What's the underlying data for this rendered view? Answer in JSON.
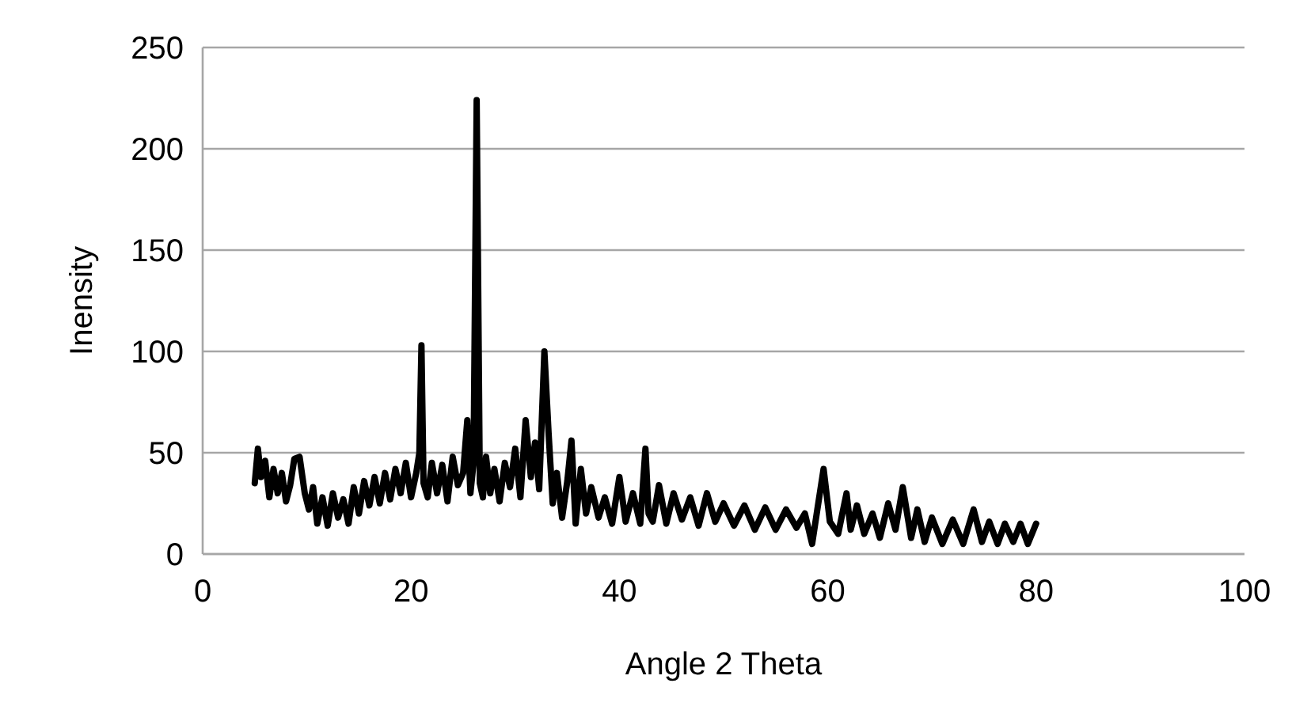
{
  "chart_data": {
    "type": "line",
    "xlabel": "Angle 2 Theta",
    "ylabel": "Inensity",
    "xlim": [
      0,
      100
    ],
    "ylim": [
      0,
      250
    ],
    "xticks": [
      0,
      20,
      40,
      60,
      80,
      100
    ],
    "yticks": [
      0,
      50,
      100,
      150,
      200,
      250
    ],
    "grid": "y",
    "line_style": "solid",
    "marker": "none",
    "series": [
      {
        "color": "#000000",
        "x": [
          5,
          5.3,
          5.6,
          6,
          6.4,
          6.8,
          7.2,
          7.6,
          8,
          8.4,
          8.8,
          9.3,
          9.8,
          10.2,
          10.6,
          11,
          11.5,
          12,
          12.5,
          13,
          13.5,
          14,
          14.5,
          15,
          15.5,
          16,
          16.5,
          17,
          17.5,
          18,
          18.5,
          19,
          19.5,
          20,
          20.5,
          20.8,
          21,
          21.2,
          21.6,
          22,
          22.5,
          23,
          23.5,
          24,
          24.5,
          25,
          25.4,
          25.7,
          26,
          26.3,
          26.6,
          26.9,
          27.2,
          27.6,
          28,
          28.5,
          29,
          29.5,
          30,
          30.5,
          31,
          31.5,
          31.9,
          32.3,
          32.8,
          33.2,
          33.6,
          34,
          34.5,
          35,
          35.4,
          35.8,
          36.3,
          36.8,
          37.3,
          38,
          38.6,
          39.3,
          40,
          40.6,
          41.3,
          42,
          42.5,
          42.8,
          43.2,
          43.8,
          44.5,
          45.2,
          46,
          46.8,
          47.6,
          48.4,
          49.2,
          50,
          51,
          52,
          53,
          54,
          55,
          56,
          57,
          57.8,
          58.5,
          59,
          59.6,
          60.2,
          61,
          61.8,
          62.2,
          62.8,
          63.5,
          64.3,
          65,
          65.8,
          66.5,
          67.2,
          68,
          68.6,
          69.3,
          70,
          71,
          72,
          73,
          74,
          74.8,
          75.5,
          76.3,
          77,
          77.8,
          78.5,
          79.2,
          80
        ],
        "values": [
          35,
          52,
          38,
          46,
          28,
          42,
          30,
          40,
          26,
          34,
          47,
          48,
          30,
          22,
          33,
          15,
          28,
          14,
          30,
          18,
          27,
          15,
          33,
          20,
          36,
          24,
          38,
          25,
          40,
          27,
          42,
          30,
          45,
          28,
          40,
          50,
          103,
          35,
          28,
          45,
          30,
          44,
          26,
          48,
          34,
          40,
          66,
          30,
          45,
          224,
          35,
          28,
          48,
          30,
          42,
          26,
          45,
          33,
          52,
          28,
          66,
          38,
          55,
          32,
          100,
          60,
          25,
          40,
          18,
          36,
          56,
          15,
          42,
          20,
          33,
          18,
          28,
          15,
          38,
          16,
          30,
          15,
          52,
          20,
          16,
          34,
          15,
          30,
          17,
          28,
          14,
          30,
          16,
          25,
          14,
          24,
          12,
          23,
          12,
          22,
          13,
          20,
          5,
          22,
          42,
          16,
          10,
          30,
          12,
          24,
          10,
          20,
          8,
          25,
          12,
          33,
          8,
          22,
          6,
          18,
          5,
          17,
          5,
          22,
          6,
          16,
          5,
          15,
          6,
          15,
          5,
          15
        ]
      }
    ]
  }
}
